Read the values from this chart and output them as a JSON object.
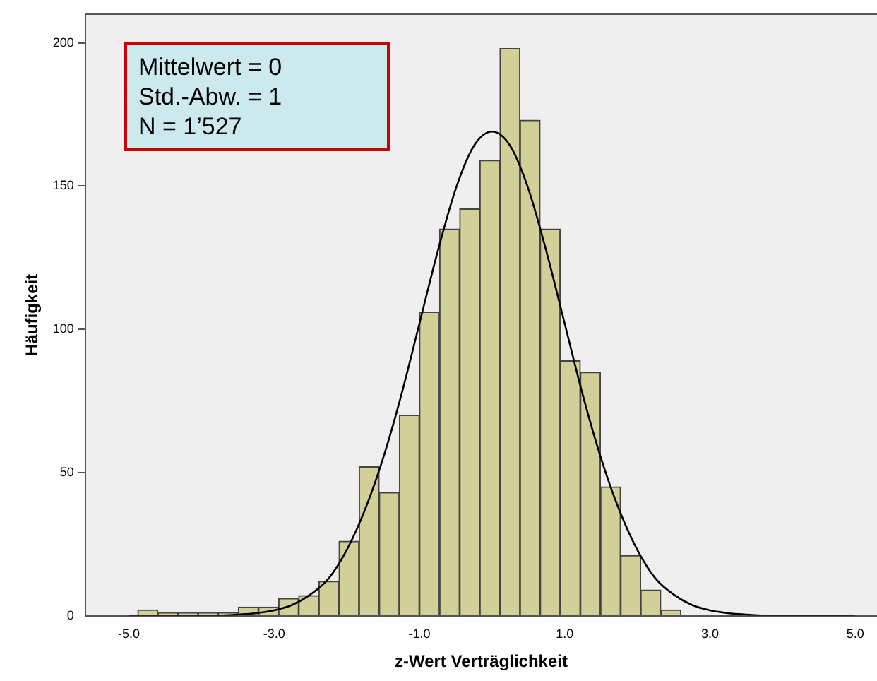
{
  "chart_data": {
    "type": "histogram",
    "xlabel": "z-Wert Verträglichkeit",
    "ylabel": "Häufigkeit",
    "bins": [
      -4.878,
      -4.601,
      -4.324,
      -4.047,
      -3.77,
      -3.493,
      -3.216,
      -2.939,
      -2.662,
      -2.385,
      -2.108,
      -1.831,
      -1.554,
      -1.277,
      -1,
      -0.723,
      -0.446,
      -0.169,
      0.108,
      0.385,
      0.662,
      0.939,
      1.216,
      1.493,
      1.77,
      2.047,
      2.324,
      2.601
    ],
    "values": [
      2,
      1,
      1,
      1,
      1,
      3,
      3,
      6,
      7,
      12,
      26,
      52,
      43,
      70,
      106,
      135,
      142,
      159,
      198,
      173,
      135,
      89,
      85,
      45,
      21,
      9,
      2
    ],
    "color": "#d3cf99",
    "series": [
      {
        "type": "line",
        "color": "#000000",
        "x": [
          -5,
          -4.5,
          -4,
          -3.75,
          -3.5,
          -3.25,
          -3,
          -2.75,
          -2.5,
          -2.25,
          -2,
          -1.75,
          -1.5,
          -1.25,
          -1,
          -0.75,
          -0.5,
          -0.25,
          0,
          0.25,
          0.5,
          0.75,
          1,
          1.25,
          1.5,
          1.75,
          2,
          2.25,
          2.5,
          2.75,
          3,
          3.25,
          3.5,
          3.75,
          4,
          4.5,
          5
        ],
        "values": [
          0,
          0,
          0.1,
          0.1,
          0.4,
          0.9,
          1.9,
          3.8,
          7.4,
          13,
          23,
          37,
          55,
          77,
          102,
          127,
          149,
          164,
          169,
          164,
          149,
          127,
          102,
          77,
          55,
          37,
          23,
          13,
          7.4,
          3.8,
          1.9,
          0.9,
          0.4,
          0.1,
          0.1,
          0,
          0
        ]
      }
    ],
    "xlim": [
      -5.6,
      5.3
    ],
    "ylim": [
      0,
      210
    ],
    "xticks": [
      {
        "value": -5,
        "label": "-5.0"
      },
      {
        "value": -3,
        "label": "-3.0"
      },
      {
        "value": -1,
        "label": "-1.0"
      },
      {
        "value": 1,
        "label": "1.0"
      },
      {
        "value": 3,
        "label": "3.0"
      },
      {
        "value": 5,
        "label": "5.0"
      }
    ],
    "yticks": [
      0,
      50,
      100,
      150,
      200
    ],
    "grid": false,
    "legend": false,
    "annotations": [
      "Mittelwert = 0",
      "Std.-Abw. = 1",
      "N = 1’527"
    ]
  }
}
